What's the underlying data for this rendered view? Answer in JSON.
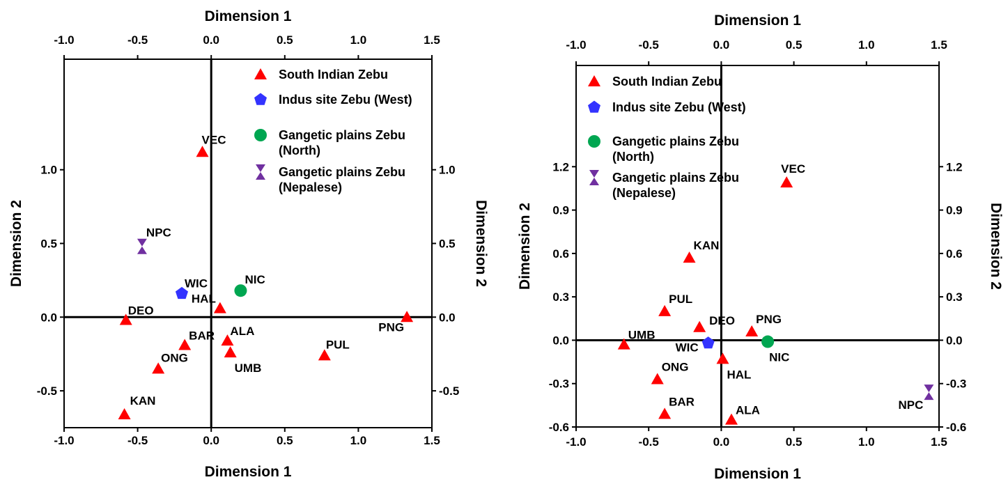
{
  "colors": {
    "south_indian": "#ff0000",
    "indus": "#3333ff",
    "gangetic_north": "#00a651",
    "nepalese": "#7030a0"
  },
  "chart_data": [
    {
      "type": "scatter",
      "xlabel_top": "Dimension 1",
      "xlabel_bottom": "Dimension 1",
      "ylabel_left": "Dimension 2",
      "ylabel_right": "Dimension 2",
      "xlim": [
        -1.0,
        1.5
      ],
      "ylim": [
        -0.75,
        1.75
      ],
      "x_ticks": [
        "-1.0",
        "-0.5",
        "0.0",
        "0.5",
        "1.0",
        "1.5"
      ],
      "y_ticks": [
        "-0.5",
        "0.0",
        "0.5",
        "1.0"
      ],
      "legend_position": "top-right",
      "legend": [
        {
          "group": "south",
          "lines": [
            "South Indian Zebu"
          ]
        },
        {
          "group": "indus",
          "lines": [
            "Indus site Zebu (West)"
          ]
        },
        {
          "group": "north",
          "lines": [
            "Gangetic plains Zebu",
            "(North)"
          ]
        },
        {
          "group": "nepal",
          "lines": [
            "Gangetic plains Zebu",
            "(Nepalese)"
          ]
        }
      ],
      "points": [
        {
          "label": "VEC",
          "group": "south",
          "x": -0.06,
          "y": 1.12
        },
        {
          "label": "NPC",
          "group": "nepal",
          "x": -0.47,
          "y": 0.48
        },
        {
          "label": "WIC",
          "group": "indus",
          "x": -0.2,
          "y": 0.16
        },
        {
          "label": "NIC",
          "group": "north",
          "x": 0.2,
          "y": 0.18
        },
        {
          "label": "HAL",
          "group": "south",
          "x": 0.06,
          "y": 0.06
        },
        {
          "label": "DEO",
          "group": "south",
          "x": -0.58,
          "y": -0.02
        },
        {
          "label": "PNG",
          "group": "south",
          "x": 1.33,
          "y": 0.0
        },
        {
          "label": "BAR",
          "group": "south",
          "x": -0.18,
          "y": -0.19
        },
        {
          "label": "ALA",
          "group": "south",
          "x": 0.11,
          "y": -0.16
        },
        {
          "label": "UMB",
          "group": "south",
          "x": 0.13,
          "y": -0.24
        },
        {
          "label": "PUL",
          "group": "south",
          "x": 0.77,
          "y": -0.26
        },
        {
          "label": "ONG",
          "group": "south",
          "x": -0.36,
          "y": -0.35
        },
        {
          "label": "KAN",
          "group": "south",
          "x": -0.59,
          "y": -0.66
        }
      ]
    },
    {
      "type": "scatter",
      "xlabel_top": "Dimension 1",
      "xlabel_bottom": "Dimension 1",
      "ylabel_left": "Dimension 2",
      "ylabel_right": "Dimension 2",
      "xlim": [
        -1.0,
        1.5
      ],
      "ylim": [
        -0.6,
        1.9
      ],
      "x_ticks": [
        "-1.0",
        "-0.5",
        "0.0",
        "0.5",
        "1.0",
        "1.5"
      ],
      "y_ticks": [
        "-0.6",
        "-0.3",
        "0.0",
        "0.3",
        "0.6",
        "0.9",
        "1.2"
      ],
      "legend_position": "top-left",
      "legend": [
        {
          "group": "south",
          "lines": [
            "South Indian Zebu"
          ]
        },
        {
          "group": "indus",
          "lines": [
            "Indus site Zebu (West)"
          ]
        },
        {
          "group": "north",
          "lines": [
            "Gangetic plains Zebu",
            "(North)"
          ]
        },
        {
          "group": "nepal",
          "lines": [
            "Gangetic plains Zebu",
            "(Nepalese)"
          ]
        }
      ],
      "points": [
        {
          "label": "VEC",
          "group": "south",
          "x": 0.45,
          "y": 1.09
        },
        {
          "label": "KAN",
          "group": "south",
          "x": -0.22,
          "y": 0.57
        },
        {
          "label": "PUL",
          "group": "south",
          "x": -0.39,
          "y": 0.2
        },
        {
          "label": "PNG",
          "group": "south",
          "x": 0.21,
          "y": 0.06
        },
        {
          "label": "DEO",
          "group": "south",
          "x": -0.15,
          "y": 0.09
        },
        {
          "label": "UMB",
          "group": "south",
          "x": -0.67,
          "y": -0.03
        },
        {
          "label": "WIC",
          "group": "indus",
          "x": -0.09,
          "y": -0.02
        },
        {
          "label": "NIC",
          "group": "north",
          "x": 0.32,
          "y": -0.01
        },
        {
          "label": "HAL",
          "group": "south",
          "x": 0.01,
          "y": -0.13
        },
        {
          "label": "ONG",
          "group": "south",
          "x": -0.44,
          "y": -0.27
        },
        {
          "label": "BAR",
          "group": "south",
          "x": -0.39,
          "y": -0.51
        },
        {
          "label": "ALA",
          "group": "south",
          "x": 0.07,
          "y": -0.55
        },
        {
          "label": "NPC",
          "group": "nepal",
          "x": 1.43,
          "y": -0.36
        }
      ]
    }
  ]
}
